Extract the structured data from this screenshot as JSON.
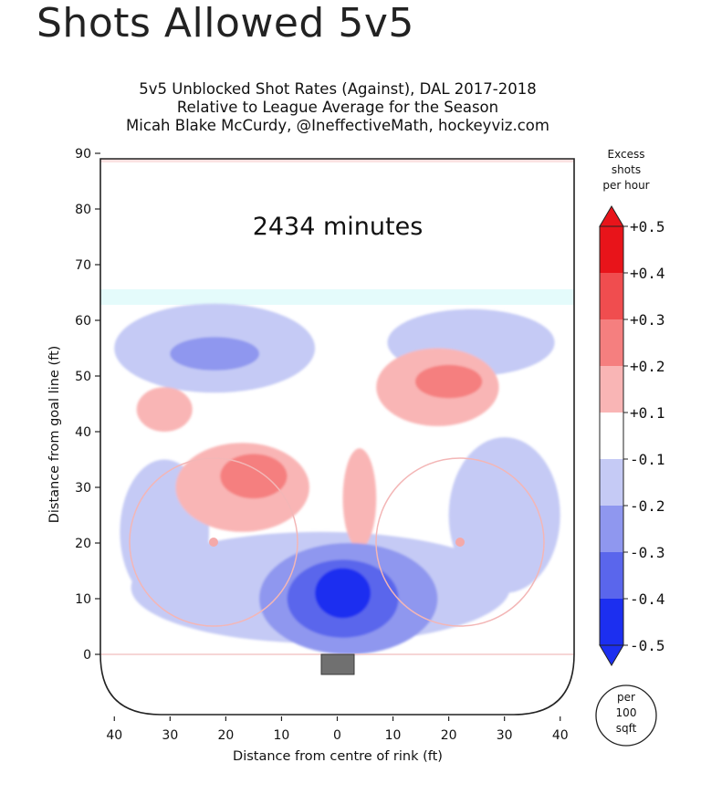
{
  "page": {
    "title": "Shots Allowed 5v5"
  },
  "chart_data": {
    "type": "heatmap",
    "title_lines": [
      "5v5 Unblocked Shot Rates (Against), DAL 2017-2018",
      "Relative to League Average for the Season",
      "Micah Blake McCurdy, @IneffectiveMath, hockeyviz.com"
    ],
    "annotation": "2434 minutes",
    "xlabel": "Distance from centre of rink (ft)",
    "ylabel": "Distance from goal line (ft)",
    "xlim": [
      -42.5,
      42.5
    ],
    "ylim": [
      -11,
      90
    ],
    "x_ticks": [
      {
        "value": -40,
        "label": "40"
      },
      {
        "value": -30,
        "label": "30"
      },
      {
        "value": -20,
        "label": "20"
      },
      {
        "value": -10,
        "label": "10"
      },
      {
        "value": 0,
        "label": "0"
      },
      {
        "value": 10,
        "label": "10"
      },
      {
        "value": 20,
        "label": "20"
      },
      {
        "value": 30,
        "label": "30"
      },
      {
        "value": 40,
        "label": "40"
      }
    ],
    "y_ticks": [
      {
        "value": 0,
        "label": "0"
      },
      {
        "value": 10,
        "label": "10"
      },
      {
        "value": 20,
        "label": "20"
      },
      {
        "value": 30,
        "label": "30"
      },
      {
        "value": 40,
        "label": "40"
      },
      {
        "value": 50,
        "label": "50"
      },
      {
        "value": 60,
        "label": "60"
      },
      {
        "value": 70,
        "label": "70"
      },
      {
        "value": 80,
        "label": "80"
      },
      {
        "value": 90,
        "label": "90"
      }
    ],
    "colorbar": {
      "title_lines": [
        "Excess",
        "shots",
        "per hour"
      ],
      "labels": [
        "+0.5",
        "+0.4",
        "+0.3",
        "+0.2",
        "+0.1",
        "-0.1",
        "-0.2",
        "-0.3",
        "-0.4",
        "-0.5"
      ],
      "colors": [
        "#e8141a",
        "#f04d4f",
        "#f57f7f",
        "#f9b5b5",
        "#ffffff",
        "#c5caf5",
        "#8f97ef",
        "#5a66ec",
        "#1c2ff0"
      ],
      "unit_lines": [
        "per",
        "100",
        "sqft"
      ]
    },
    "regions": [
      {
        "level": -0.2,
        "color": "#c5caf5",
        "cx": -3,
        "cy": 12,
        "rx": 34,
        "ry": 10
      },
      {
        "level": -0.2,
        "color": "#c5caf5",
        "cx": -31,
        "cy": 22,
        "rx": 8,
        "ry": 13
      },
      {
        "level": -0.2,
        "color": "#c5caf5",
        "cx": 30,
        "cy": 25,
        "rx": 10,
        "ry": 14
      },
      {
        "level": -0.2,
        "color": "#c5caf5",
        "cx": -22,
        "cy": 55,
        "rx": 18,
        "ry": 8
      },
      {
        "level": -0.2,
        "color": "#c5caf5",
        "cx": 24,
        "cy": 56,
        "rx": 15,
        "ry": 6
      },
      {
        "level": 0.1,
        "color": "#f9b5b5",
        "cx": -17,
        "cy": 30,
        "rx": 12,
        "ry": 8
      },
      {
        "level": 0.1,
        "color": "#f9b5b5",
        "cx": -31,
        "cy": 44,
        "rx": 5,
        "ry": 4
      },
      {
        "level": 0.1,
        "color": "#f9b5b5",
        "cx": 18,
        "cy": 48,
        "rx": 11,
        "ry": 7
      },
      {
        "level": 0.1,
        "color": "#f9b5b5",
        "cx": 4,
        "cy": 28,
        "rx": 3,
        "ry": 9
      },
      {
        "level": 0.2,
        "color": "#f57f7f",
        "cx": -15,
        "cy": 32,
        "rx": 6,
        "ry": 4
      },
      {
        "level": 0.2,
        "color": "#f57f7f",
        "cx": 20,
        "cy": 49,
        "rx": 6,
        "ry": 3
      },
      {
        "level": -0.3,
        "color": "#8f97ef",
        "cx": -22,
        "cy": 54,
        "rx": 8,
        "ry": 3
      },
      {
        "level": -0.3,
        "color": "#8f97ef",
        "cx": 2,
        "cy": 10,
        "rx": 16,
        "ry": 10
      },
      {
        "level": -0.4,
        "color": "#5a66ec",
        "cx": 1,
        "cy": 10,
        "rx": 10,
        "ry": 7
      },
      {
        "level": -0.5,
        "color": "#1c2ff0",
        "cx": 1,
        "cy": 11,
        "rx": 5,
        "ry": 4.5
      }
    ]
  }
}
